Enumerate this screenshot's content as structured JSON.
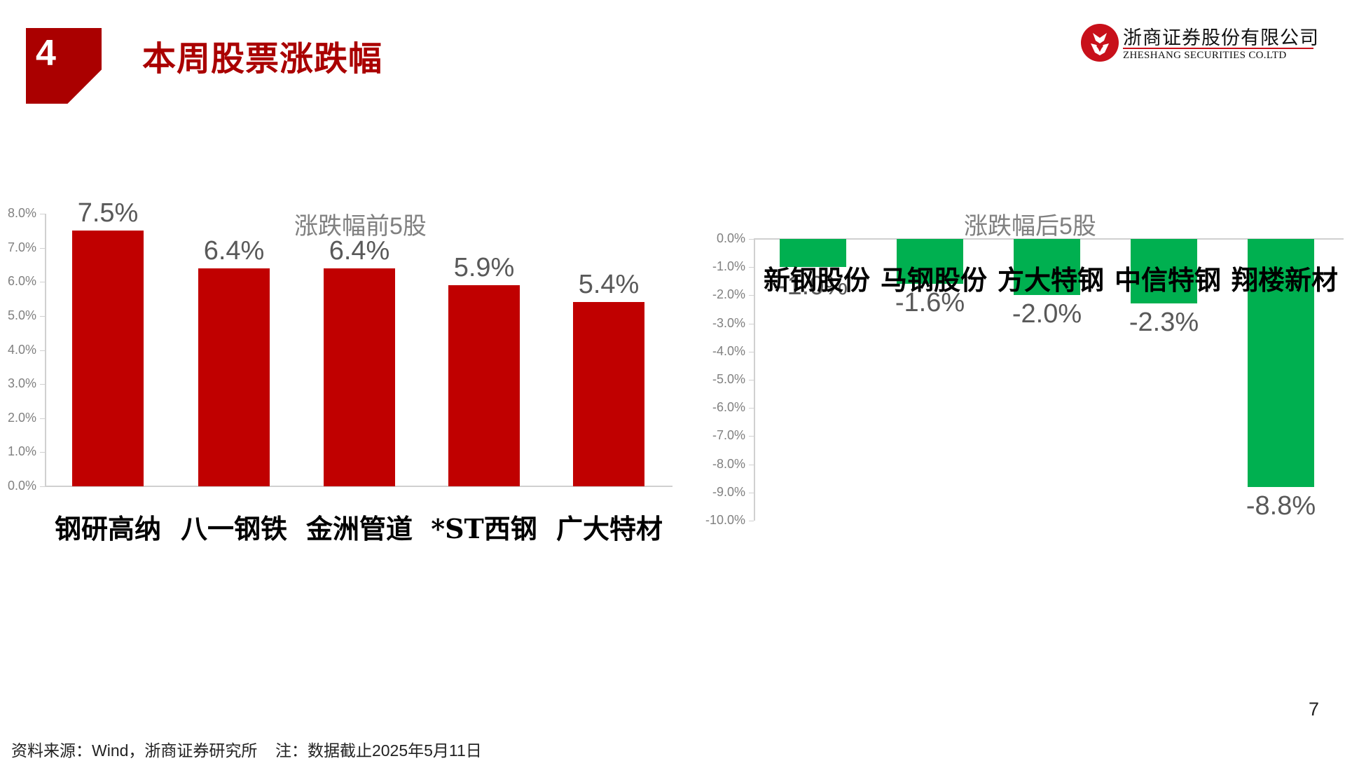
{
  "header": {
    "section_number": "4",
    "title": "本周股票涨跌幅",
    "logo": {
      "cn_name": "浙商证券股份有限公司",
      "en_name": "ZHESHANG SECURITIES CO.LTD"
    }
  },
  "colors": {
    "brand_red": "#aa0000",
    "up_bar": "#c00000",
    "down_bar": "#00b050",
    "axis": "#d0d0d0"
  },
  "chart_data": [
    {
      "type": "bar",
      "title": "涨跌幅前5股",
      "categories": [
        "钢研高纳",
        "八一钢铁",
        "金洲管道",
        "*ST西钢",
        "广大特材"
      ],
      "values": [
        7.5,
        6.4,
        6.4,
        5.9,
        5.4
      ],
      "value_labels": [
        "7.5%",
        "6.4%",
        "6.4%",
        "5.9%",
        "5.4%"
      ],
      "unit": "%",
      "xlabel": "",
      "ylabel": "",
      "ylim": [
        0,
        8
      ],
      "yticks": [
        "8.0%",
        "7.0%",
        "6.0%",
        "5.0%",
        "4.0%",
        "3.0%",
        "2.0%",
        "1.0%",
        "0.0%"
      ],
      "grid": false,
      "legend": "none",
      "color": "#c00000"
    },
    {
      "type": "bar",
      "title": "涨跌幅后5股",
      "categories": [
        "新钢股份",
        "马钢股份",
        "方大特钢",
        "中信特钢",
        "翔楼新材"
      ],
      "values": [
        -1.0,
        -1.6,
        -2.0,
        -2.3,
        -8.8
      ],
      "value_labels": [
        "-1.0%",
        "-1.6%",
        "-2.0%",
        "-2.3%",
        "-8.8%"
      ],
      "unit": "%",
      "xlabel": "",
      "ylabel": "",
      "ylim": [
        -10,
        0
      ],
      "yticks": [
        "0.0%",
        "-1.0%",
        "-2.0%",
        "-3.0%",
        "-4.0%",
        "-5.0%",
        "-6.0%",
        "-7.0%",
        "-8.0%",
        "-9.0%",
        "-10.0%"
      ],
      "grid": false,
      "legend": "none",
      "color": "#00b050"
    }
  ],
  "footer": {
    "source": "资料来源：Wind，浙商证券研究所    注：数据截止2025年5月11日",
    "page_number": "7"
  }
}
